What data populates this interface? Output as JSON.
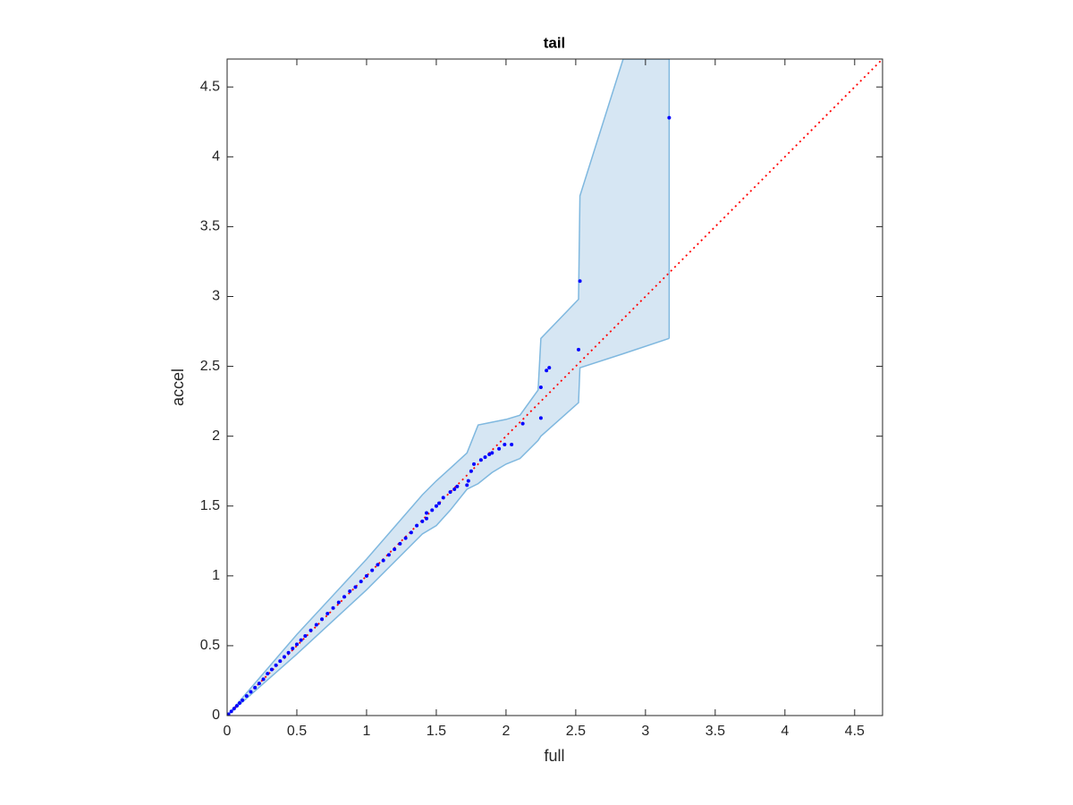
{
  "chart_data": {
    "type": "scatter",
    "title": "tail",
    "xlabel": "full",
    "ylabel": "accel",
    "xlim": [
      0,
      4.7
    ],
    "ylim": [
      0,
      4.7
    ],
    "xticks": [
      0,
      0.5,
      1,
      1.5,
      2,
      2.5,
      3,
      3.5,
      4,
      4.5
    ],
    "yticks": [
      0,
      0.5,
      1,
      1.5,
      2,
      2.5,
      3,
      3.5,
      4,
      4.5
    ],
    "box": true,
    "band": {
      "color": "#d6e6f3",
      "edge_color": "#7fb8df",
      "x": [
        0,
        0.5,
        1,
        1.4,
        1.5,
        1.6,
        1.72,
        1.8,
        1.9,
        2.0,
        2.1,
        2.23,
        2.25,
        2.52,
        2.53,
        2.84,
        3.17
      ],
      "upper": [
        0,
        0.58,
        1.12,
        1.58,
        1.68,
        1.77,
        1.88,
        2.08,
        2.1,
        2.12,
        2.15,
        2.33,
        2.7,
        2.98,
        3.72,
        4.7,
        4.7
      ],
      "lower": [
        0,
        0.44,
        0.9,
        1.3,
        1.36,
        1.47,
        1.62,
        1.66,
        1.74,
        1.8,
        1.84,
        1.97,
        2.0,
        2.24,
        2.49,
        2.59,
        2.7
      ]
    },
    "reference_line": {
      "color": "#ff0000",
      "style": "dotted",
      "x": [
        0,
        4.7
      ],
      "values": [
        0,
        4.7
      ]
    },
    "series": [
      {
        "color": "#0000ff",
        "x": [
          0.01,
          0.03,
          0.05,
          0.07,
          0.09,
          0.11,
          0.14,
          0.17,
          0.2,
          0.23,
          0.26,
          0.29,
          0.32,
          0.35,
          0.38,
          0.41,
          0.44,
          0.47,
          0.5,
          0.53,
          0.56,
          0.6,
          0.64,
          0.68,
          0.72,
          0.76,
          0.8,
          0.84,
          0.88,
          0.92,
          0.96,
          1.0,
          1.04,
          1.08,
          1.12,
          1.16,
          1.2,
          1.24,
          1.28,
          1.32,
          1.36,
          1.4,
          1.43,
          1.43,
          1.47,
          1.5,
          1.52,
          1.55,
          1.6,
          1.63,
          1.65,
          1.72,
          1.73,
          1.75,
          1.77,
          1.82,
          1.85,
          1.88,
          1.9,
          1.95,
          1.99,
          2.04,
          2.12,
          2.25,
          2.25,
          2.29,
          2.31,
          2.52,
          2.53,
          3.17
        ],
        "values": [
          0.01,
          0.03,
          0.05,
          0.07,
          0.09,
          0.11,
          0.14,
          0.17,
          0.2,
          0.23,
          0.26,
          0.3,
          0.33,
          0.36,
          0.39,
          0.42,
          0.45,
          0.48,
          0.51,
          0.54,
          0.57,
          0.61,
          0.65,
          0.69,
          0.73,
          0.77,
          0.81,
          0.85,
          0.89,
          0.92,
          0.96,
          1.0,
          1.04,
          1.08,
          1.11,
          1.15,
          1.19,
          1.23,
          1.27,
          1.31,
          1.36,
          1.39,
          1.41,
          1.45,
          1.47,
          1.5,
          1.52,
          1.56,
          1.6,
          1.62,
          1.64,
          1.65,
          1.68,
          1.75,
          1.8,
          1.83,
          1.85,
          1.87,
          1.88,
          1.91,
          1.94,
          1.94,
          2.09,
          2.35,
          2.13,
          2.47,
          2.49,
          2.62,
          3.11,
          4.28
        ]
      }
    ]
  }
}
